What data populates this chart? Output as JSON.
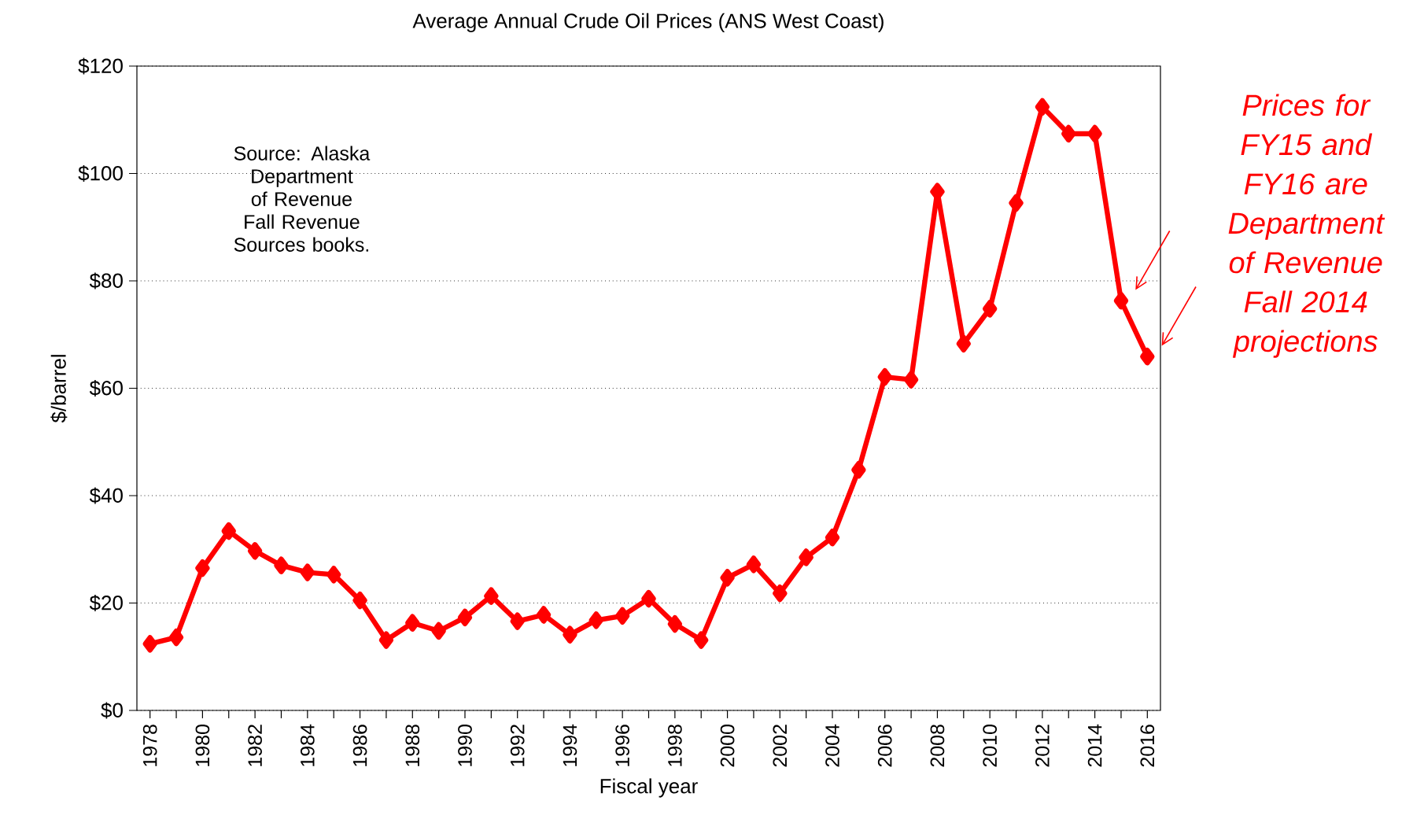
{
  "chart_data": {
    "type": "line",
    "title": "Average Annual  Crude Oil Prices (ANS West Coast)",
    "xlabel": "Fiscal year",
    "ylabel": "$/barrel",
    "x": [
      1978,
      1979,
      1980,
      1981,
      1982,
      1983,
      1984,
      1985,
      1986,
      1987,
      1988,
      1989,
      1990,
      1991,
      1992,
      1993,
      1994,
      1995,
      1996,
      1997,
      1998,
      1999,
      2000,
      2001,
      2002,
      2003,
      2004,
      2005,
      2006,
      2007,
      2008,
      2009,
      2010,
      2011,
      2012,
      2013,
      2014,
      2015,
      2016
    ],
    "series": [
      {
        "color": "#ff0000",
        "values": [
          12.4,
          13.6,
          26.5,
          33.4,
          29.7,
          27.0,
          25.7,
          25.3,
          20.5,
          13.1,
          16.3,
          14.8,
          17.3,
          21.3,
          16.6,
          17.8,
          14.1,
          16.8,
          17.6,
          20.8,
          16.1,
          13.1,
          24.7,
          27.2,
          21.8,
          28.5,
          32.2,
          44.8,
          62.1,
          61.6,
          96.6,
          68.3,
          74.8,
          94.5,
          112.4,
          107.4,
          107.4,
          76.3,
          65.9
        ]
      }
    ],
    "xlim": [
      1977.5,
      2016.5
    ],
    "xticks": [
      1978,
      {
        "value": 1979,
        "label": null
      },
      1980,
      {
        "value": 1981,
        "label": null
      },
      1982,
      {
        "value": 1983,
        "label": null
      },
      1984,
      {
        "value": 1985,
        "label": null
      },
      1986,
      {
        "value": 1987,
        "label": null
      },
      1988,
      {
        "value": 1989,
        "label": null
      },
      1990,
      {
        "value": 1991,
        "label": null
      },
      1992,
      {
        "value": 1993,
        "label": null
      },
      1994,
      {
        "value": 1995,
        "label": null
      },
      1996,
      {
        "value": 1997,
        "label": null
      },
      1998,
      {
        "value": 1999,
        "label": null
      },
      2000,
      {
        "value": 2001,
        "label": null
      },
      2002,
      {
        "value": 2003,
        "label": null
      },
      2004,
      {
        "value": 2005,
        "label": null
      },
      2006,
      {
        "value": 2007,
        "label": null
      },
      2008,
      {
        "value": 2009,
        "label": null
      },
      2010,
      {
        "value": 2011,
        "label": null
      },
      2012,
      {
        "value": 2013,
        "label": null
      },
      2014,
      {
        "value": 2015,
        "label": null
      },
      2016
    ],
    "ylim": [
      0,
      120
    ],
    "yticks": [
      {
        "value": 0,
        "label": "$0"
      },
      {
        "value": 20,
        "label": "$20"
      },
      {
        "value": 40,
        "label": "$40"
      },
      {
        "value": 60,
        "label": "$60"
      },
      {
        "value": 80,
        "label": "$80"
      },
      {
        "value": 100,
        "label": "$100"
      },
      {
        "value": 120,
        "label": "$120"
      }
    ],
    "grid": "y",
    "marker": "diamond",
    "line_style": "solid",
    "annotations": [
      "Source:  Alaska Department of Revenue  Fall Revenue  Sources books.",
      "Prices for FY15 and FY16 are Department of Revenue Fall 2014 projections"
    ]
  }
}
